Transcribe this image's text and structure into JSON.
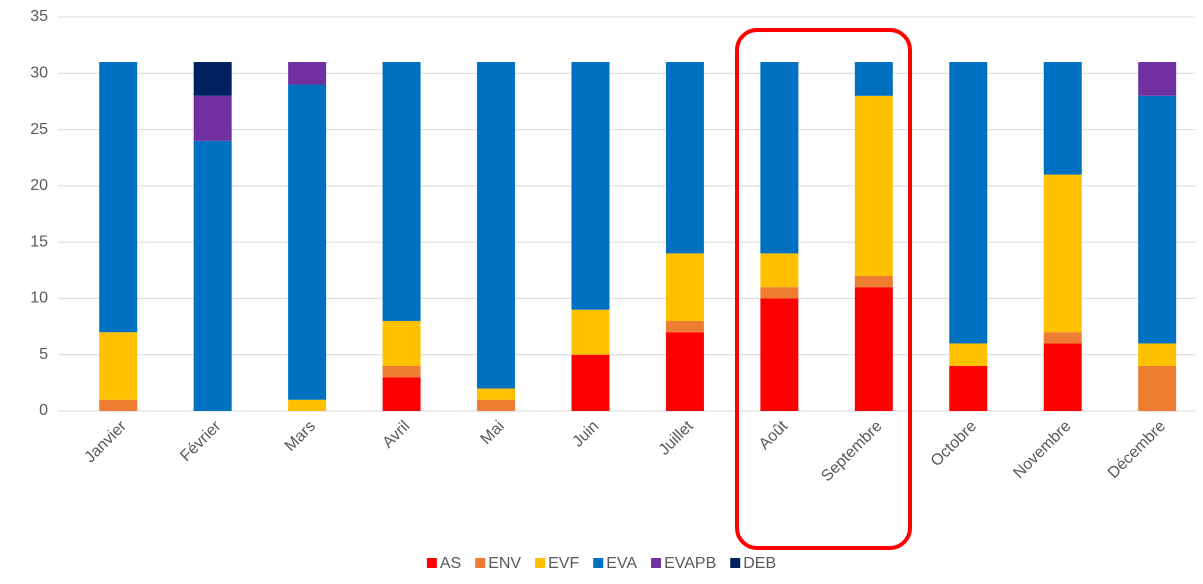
{
  "chart_data": {
    "type": "bar",
    "stacked": true,
    "categories": [
      "Janvier",
      "Février",
      "Mars",
      "Avril",
      "Mai",
      "Juin",
      "Juillet",
      "Août",
      "Septembre",
      "Octobre",
      "Novembre",
      "Décembre"
    ],
    "series": [
      {
        "name": "AS",
        "color": "#ff0000",
        "values": [
          0,
          0,
          0,
          3,
          0,
          5,
          7,
          10,
          11,
          4,
          6,
          0
        ]
      },
      {
        "name": "ENV",
        "color": "#ed7d31",
        "values": [
          1,
          0,
          0,
          1,
          1,
          0,
          1,
          1,
          1,
          0,
          1,
          4
        ]
      },
      {
        "name": "EVF",
        "color": "#ffc000",
        "values": [
          6,
          0,
          1,
          4,
          1,
          4,
          6,
          3,
          16,
          2,
          14,
          2
        ]
      },
      {
        "name": "EVA",
        "color": "#0070c0",
        "values": [
          24,
          24,
          28,
          23,
          29,
          22,
          17,
          17,
          3,
          25,
          10,
          22
        ]
      },
      {
        "name": "EVAPB",
        "color": "#7030a0",
        "values": [
          0,
          4,
          2,
          0,
          0,
          0,
          0,
          0,
          0,
          0,
          0,
          3
        ]
      },
      {
        "name": "DEB",
        "color": "#002060",
        "values": [
          0,
          3,
          0,
          0,
          0,
          0,
          0,
          0,
          0,
          0,
          0,
          0
        ]
      }
    ],
    "ylim": [
      0,
      35
    ],
    "yticks": [
      0,
      5,
      10,
      15,
      20,
      25,
      30,
      35
    ],
    "grid": true,
    "legend": "bottom"
  }
}
